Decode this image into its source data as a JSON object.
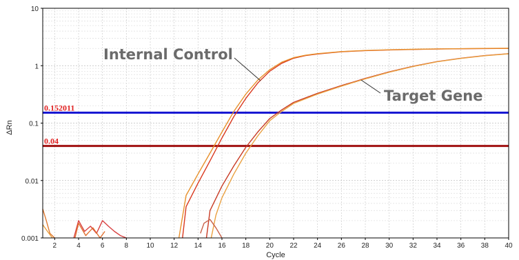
{
  "chart_data": {
    "type": "line",
    "xlabel": "Cycle",
    "ylabel": "ΔRn",
    "xlim": [
      1,
      40
    ],
    "ylim": [
      0.001,
      10
    ],
    "yscale": "log",
    "grid": true,
    "x_ticks": [
      "2",
      "4",
      "6",
      "8",
      "10",
      "12",
      "14",
      "16",
      "18",
      "20",
      "22",
      "24",
      "26",
      "28",
      "30",
      "32",
      "34",
      "36",
      "38",
      "40"
    ],
    "y_ticks": [
      "0.001",
      "0.01",
      "0.1",
      "1",
      "10"
    ],
    "thresholds": [
      {
        "label": "0.152011",
        "value": 0.152011,
        "color": "#1414d2"
      },
      {
        "label": "0.04",
        "value": 0.04,
        "color": "#a01010"
      }
    ],
    "annotations": [
      {
        "text": "Internal Control",
        "target_x": 18.9,
        "target_y": 0.5
      },
      {
        "text": "Target Gene",
        "target_x": 27.5,
        "target_y": 0.6
      }
    ],
    "series": [
      {
        "color": "#d9381e",
        "x": [
          12.7,
          13,
          14,
          15,
          16,
          17,
          18,
          19,
          20,
          21,
          22,
          23,
          24,
          26,
          28,
          30,
          32,
          34,
          36,
          38,
          40
        ],
        "y": [
          0.001,
          0.0035,
          0.009,
          0.022,
          0.055,
          0.13,
          0.27,
          0.5,
          0.8,
          1.1,
          1.35,
          1.5,
          1.6,
          1.75,
          1.83,
          1.88,
          1.92,
          1.95,
          1.97,
          1.99,
          2.0
        ]
      },
      {
        "color": "#e8902a",
        "x": [
          12.4,
          13,
          14,
          15,
          16,
          17,
          18,
          19,
          20,
          21,
          22,
          23,
          24,
          26,
          28,
          30,
          32,
          34,
          36,
          38,
          40
        ],
        "y": [
          0.001,
          0.0055,
          0.013,
          0.03,
          0.07,
          0.16,
          0.32,
          0.56,
          0.85,
          1.15,
          1.38,
          1.52,
          1.62,
          1.76,
          1.84,
          1.89,
          1.93,
          1.96,
          1.98,
          2.0,
          2.01
        ]
      },
      {
        "color": "#c83a24",
        "x": [
          14.7,
          15,
          16,
          17,
          18,
          19,
          20,
          21,
          22,
          24,
          26,
          28,
          30,
          32,
          34,
          36,
          38,
          40
        ],
        "y": [
          0.001,
          0.003,
          0.008,
          0.018,
          0.038,
          0.07,
          0.12,
          0.17,
          0.23,
          0.33,
          0.45,
          0.6,
          0.78,
          0.98,
          1.18,
          1.35,
          1.5,
          1.62
        ]
      },
      {
        "color": "#eaa040",
        "x": [
          15.1,
          15.5,
          16,
          17,
          18,
          19,
          20,
          21,
          22,
          24,
          26,
          28,
          30,
          32,
          34,
          36,
          38,
          40
        ],
        "y": [
          0.001,
          0.0025,
          0.005,
          0.013,
          0.03,
          0.06,
          0.11,
          0.16,
          0.22,
          0.32,
          0.44,
          0.59,
          0.77,
          0.97,
          1.17,
          1.34,
          1.49,
          1.61
        ]
      },
      {
        "color": "#e07a30",
        "x": [
          1,
          1.3,
          1.6,
          2
        ],
        "y": [
          0.0032,
          0.002,
          0.0012,
          0.001
        ]
      },
      {
        "color": "#e8a040",
        "x": [
          1,
          1.4,
          1.8
        ],
        "y": [
          0.0017,
          0.0013,
          0.001
        ]
      },
      {
        "color": "#d84040",
        "x": [
          3.6,
          4,
          4.5,
          5,
          5.5,
          6,
          6.5,
          7,
          7.5,
          8
        ],
        "y": [
          0.001,
          0.002,
          0.0013,
          0.0016,
          0.0012,
          0.002,
          0.0016,
          0.0013,
          0.0011,
          0.001
        ]
      },
      {
        "color": "#e07030",
        "x": [
          3.7,
          4,
          4.6,
          5.2,
          5.8,
          6.2
        ],
        "y": [
          0.001,
          0.0018,
          0.0011,
          0.0015,
          0.001,
          0.0013
        ]
      },
      {
        "color": "#c86048",
        "x": [
          14.2,
          14.5,
          15,
          15.5,
          16
        ],
        "y": [
          0.0012,
          0.0018,
          0.0021,
          0.0015,
          0.001
        ]
      }
    ]
  }
}
